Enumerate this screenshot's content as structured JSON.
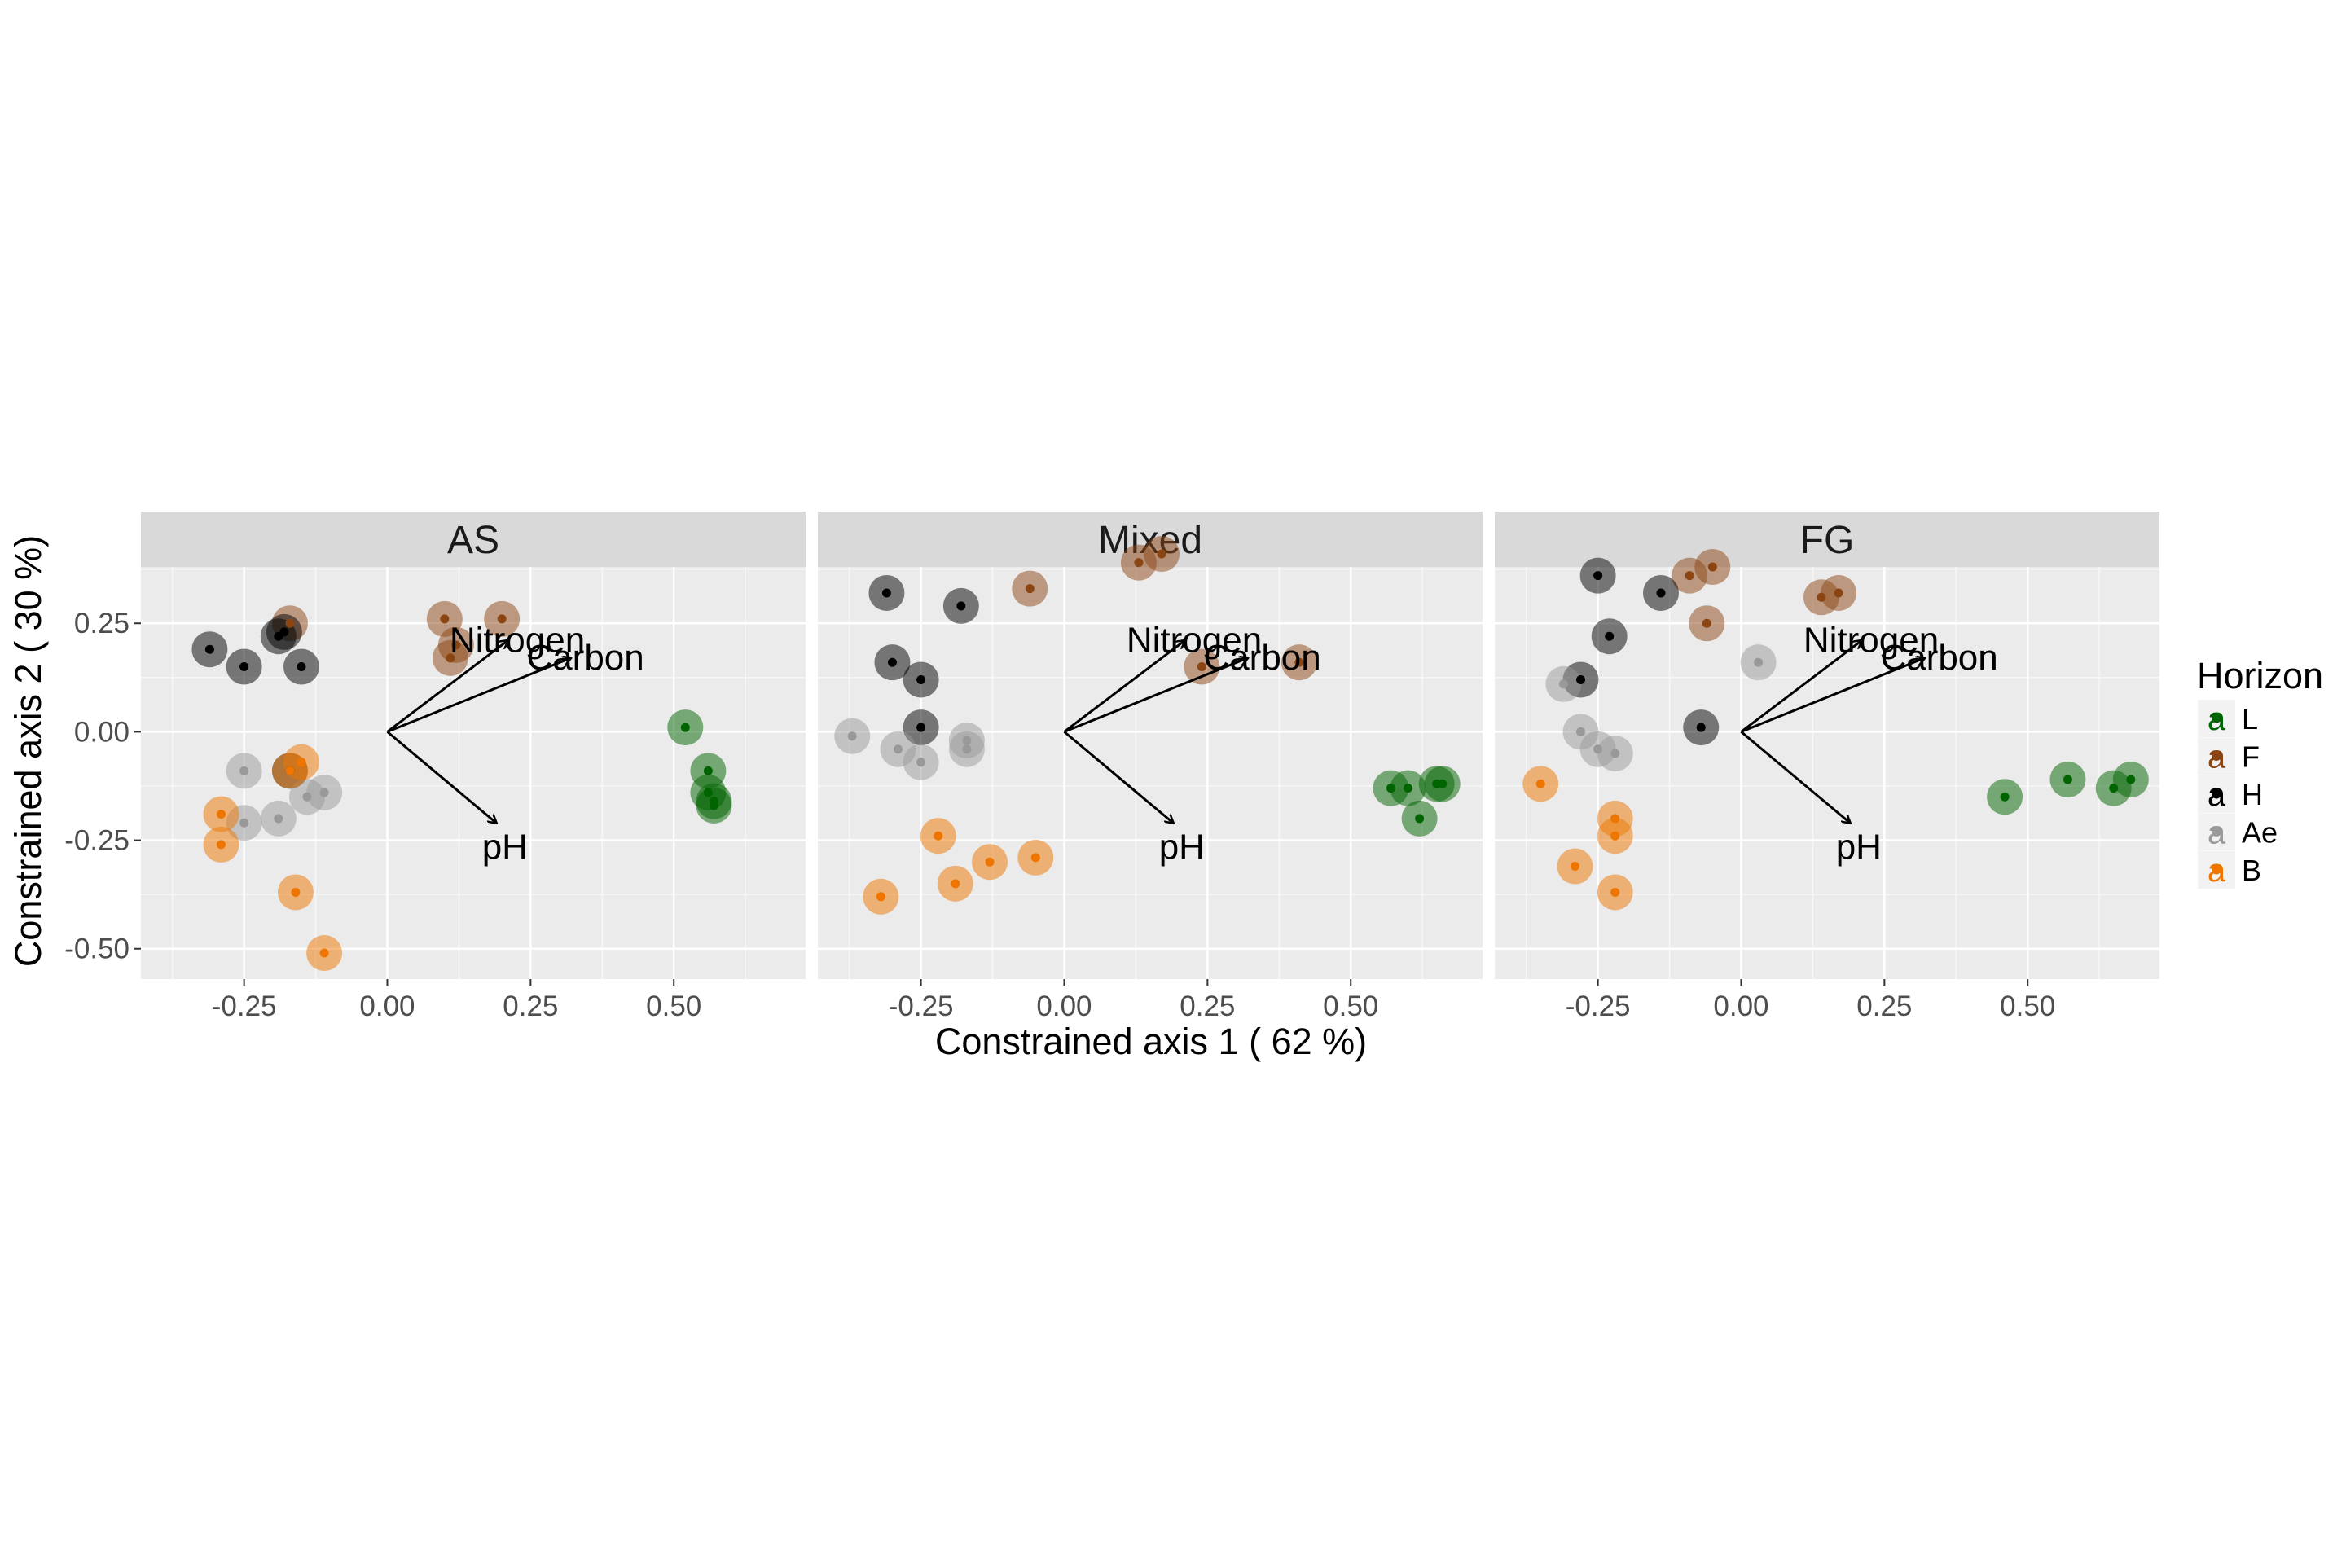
{
  "chart_data": {
    "type": "scatter",
    "subtype": "faceted ordination biplot (constrained axes) with environmental vectors",
    "xlabel": "Constrained axis 1 ( 62 %)",
    "ylabel": "Constrained axis 2 ( 30 %)",
    "xlim": [
      -0.43,
      0.73
    ],
    "ylim": [
      -0.57,
      0.38
    ],
    "xticks": [
      -0.25,
      0.0,
      0.25,
      0.5
    ],
    "xtick_labels": [
      "-0.25",
      "0.00",
      "0.25",
      "0.50"
    ],
    "yticks": [
      -0.5,
      -0.25,
      0.0,
      0.25
    ],
    "ytick_labels": [
      "-0.50",
      "-0.25",
      "0.00",
      "0.25"
    ],
    "grid": true,
    "legend": {
      "title": "Horizon",
      "position": "right",
      "key_glyph": "a",
      "entries": [
        {
          "label": "L",
          "color": "#006400"
        },
        {
          "label": "F",
          "color": "#8B4513"
        },
        {
          "label": "H",
          "color": "#000000"
        },
        {
          "label": "Ae",
          "color": "#999999"
        },
        {
          "label": "B",
          "color": "#EE7600"
        }
      ]
    },
    "vectors": [
      {
        "label": "Nitrogen",
        "x": 0.21,
        "y": 0.21
      },
      {
        "label": "Carbon",
        "x": 0.32,
        "y": 0.17
      },
      {
        "label": "pH",
        "x": 0.19,
        "y": -0.21
      }
    ],
    "facets": [
      {
        "title": "AS",
        "series": [
          {
            "name": "L",
            "x": [
              0.52,
              0.56,
              0.56,
              0.57,
              0.57
            ],
            "y": [
              0.01,
              -0.09,
              -0.14,
              -0.16,
              -0.17
            ]
          },
          {
            "name": "F",
            "x": [
              -0.17,
              0.1,
              0.2,
              0.11,
              0.12
            ],
            "y": [
              0.25,
              0.26,
              0.26,
              0.17,
              0.2
            ]
          },
          {
            "name": "H",
            "x": [
              -0.31,
              -0.25,
              -0.19,
              -0.15,
              -0.18,
              -0.17
            ],
            "y": [
              0.19,
              0.15,
              0.22,
              0.15,
              0.23,
              -0.09
            ]
          },
          {
            "name": "Ae",
            "x": [
              -0.25,
              -0.25,
              -0.19,
              -0.14,
              -0.11
            ],
            "y": [
              -0.09,
              -0.21,
              -0.2,
              -0.15,
              -0.14
            ]
          },
          {
            "name": "B",
            "x": [
              -0.29,
              -0.29,
              -0.15,
              -0.17,
              -0.11,
              -0.16
            ],
            "y": [
              -0.19,
              -0.26,
              -0.07,
              -0.09,
              -0.51,
              -0.37
            ]
          }
        ]
      },
      {
        "title": "Mixed",
        "series": [
          {
            "name": "L",
            "x": [
              0.57,
              0.6,
              0.65,
              0.66,
              0.62
            ],
            "y": [
              -0.13,
              -0.13,
              -0.12,
              -0.12,
              -0.2
            ]
          },
          {
            "name": "F",
            "x": [
              -0.06,
              0.13,
              0.17,
              0.24,
              0.41
            ],
            "y": [
              0.33,
              0.39,
              0.41,
              0.15,
              0.16
            ]
          },
          {
            "name": "H",
            "x": [
              -0.31,
              -0.18,
              -0.3,
              -0.25,
              -0.25
            ],
            "y": [
              0.32,
              0.29,
              0.16,
              0.12,
              0.01
            ]
          },
          {
            "name": "Ae",
            "x": [
              -0.37,
              -0.29,
              -0.25,
              -0.17,
              -0.17
            ],
            "y": [
              -0.01,
              -0.04,
              -0.07,
              -0.02,
              -0.04
            ]
          },
          {
            "name": "B",
            "x": [
              -0.32,
              -0.22,
              -0.19,
              -0.13,
              -0.05
            ],
            "y": [
              -0.38,
              -0.24,
              -0.35,
              -0.3,
              -0.29
            ]
          }
        ]
      },
      {
        "title": "FG",
        "series": [
          {
            "name": "L",
            "x": [
              0.46,
              0.57,
              0.65,
              0.68
            ],
            "y": [
              -0.15,
              -0.11,
              -0.13,
              -0.11
            ]
          },
          {
            "name": "F",
            "x": [
              -0.09,
              -0.05,
              -0.06,
              0.14,
              0.17
            ],
            "y": [
              0.36,
              0.38,
              0.25,
              0.31,
              0.32
            ]
          },
          {
            "name": "H",
            "x": [
              -0.25,
              -0.14,
              -0.23,
              -0.28,
              -0.07
            ],
            "y": [
              0.36,
              0.32,
              0.22,
              0.12,
              0.01
            ]
          },
          {
            "name": "Ae",
            "x": [
              0.03,
              -0.31,
              -0.28,
              -0.25,
              -0.22
            ],
            "y": [
              0.16,
              0.11,
              0.0,
              -0.04,
              -0.05
            ]
          },
          {
            "name": "B",
            "x": [
              -0.35,
              -0.29,
              -0.22,
              -0.22,
              -0.22
            ],
            "y": [
              -0.12,
              -0.31,
              -0.2,
              -0.24,
              -0.37
            ]
          }
        ]
      }
    ]
  }
}
